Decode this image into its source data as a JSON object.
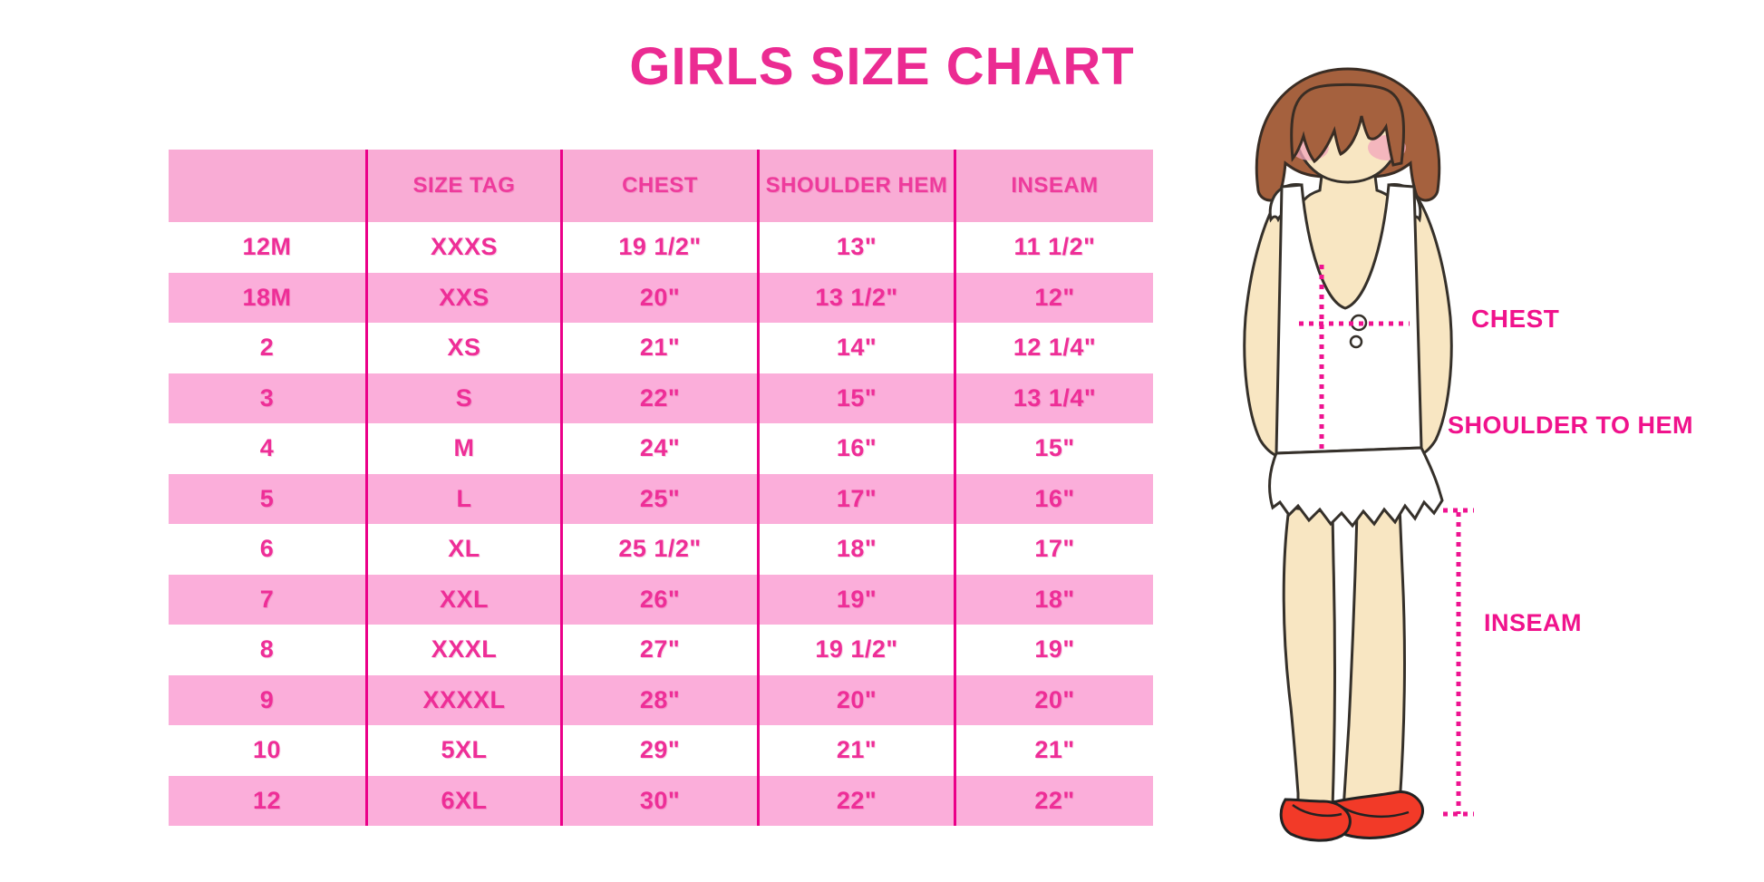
{
  "title": "GIRLS SIZE CHART",
  "chart_data": {
    "type": "table",
    "title": "GIRLS SIZE CHART",
    "columns": [
      "",
      "SIZE TAG",
      "CHEST",
      "SHOULDER HEM",
      "INSEAM"
    ],
    "rows": [
      [
        "12M",
        "XXXS",
        "19 1/2\"",
        "13\"",
        "11 1/2\""
      ],
      [
        "18M",
        "XXS",
        "20\"",
        "13 1/2\"",
        "12\""
      ],
      [
        "2",
        "XS",
        "21\"",
        "14\"",
        "12 1/4\""
      ],
      [
        "3",
        "S",
        "22\"",
        "15\"",
        "13 1/4\""
      ],
      [
        "4",
        "M",
        "24\"",
        "16\"",
        "15\""
      ],
      [
        "5",
        "L",
        "25\"",
        "17\"",
        "16\""
      ],
      [
        "6",
        "XL",
        "25 1/2\"",
        "18\"",
        "17\""
      ],
      [
        "7",
        "XXL",
        "26\"",
        "19\"",
        "18\""
      ],
      [
        "8",
        "XXXL",
        "27\"",
        "19 1/2\"",
        "19\""
      ],
      [
        "9",
        "XXXXL",
        "28\"",
        "20\"",
        "20\""
      ],
      [
        "10",
        "5XL",
        "29\"",
        "21\"",
        "21\""
      ],
      [
        "12",
        "6XL",
        "30\"",
        "22\"",
        "22\""
      ]
    ],
    "layout": {
      "row_striping": "alternating white and pink, header pink",
      "legend_position": "none",
      "grid": "vertical magenta dividers between columns only"
    }
  },
  "figure": {
    "description": "illustration of girl with bob haircut, white ruffle top, red shoes, dotted measurement guides",
    "labels": {
      "chest": "CHEST",
      "shoulder_to_hem": "SHOULDER TO HEM",
      "inseam": "INSEAM"
    }
  },
  "colors": {
    "title": "#EB2B92",
    "header_pink": "#F9ACD5",
    "row_pink": "#FBAEDA",
    "divider": "#EB0089",
    "cell_text": "#EE2E97",
    "header_text": "#EE3B9C",
    "label_pink": "#F0128C",
    "dotted_line": "#EE1390",
    "hair": "#A5613E",
    "skin": "#F8E6C2",
    "blush": "#F3A6BB",
    "shoe_red": "#F23A28"
  }
}
